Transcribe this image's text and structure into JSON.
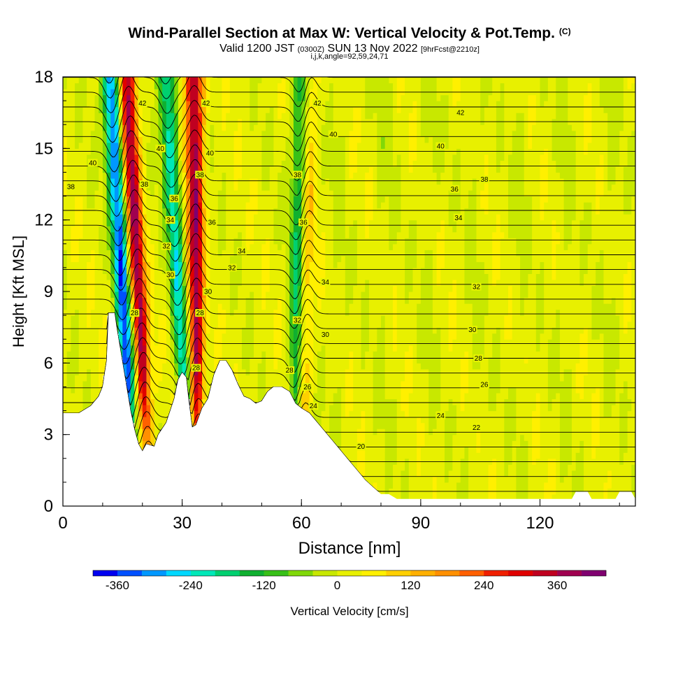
{
  "header": {
    "title": "Wind-Parallel Section at Max W: Vertical Velocity & Pot.Temp.",
    "copyright": "(C)",
    "valid_prefix": "Valid 1200 JST",
    "valid_utc": "(0300Z)",
    "valid_date": "SUN 13 Nov 2022",
    "forecast_tag": "[9hrFcst@2210z]",
    "grid_info": "i,j,k,angle=92,59,24,71"
  },
  "chart_data": {
    "type": "heatmap",
    "xlabel": "Distance [nm]",
    "ylabel": "Height [Kft MSL]",
    "xlim": [
      0,
      144
    ],
    "ylim": [
      0,
      18
    ],
    "x_ticks": [
      0,
      30,
      60,
      90,
      120
    ],
    "y_ticks": [
      0,
      3,
      6,
      9,
      12,
      15,
      18
    ],
    "grid": false,
    "field_filled": "Vertical Velocity [cm/s]",
    "field_contours": "Potential Temperature",
    "colorbar": {
      "label": "Vertical Velocity [cm/s]",
      "min": -400,
      "max": 440,
      "tick_values": [
        -360,
        -240,
        -120,
        0,
        120,
        240,
        360
      ],
      "tick_labels": [
        "-360",
        "-240",
        "-120",
        "0",
        "120",
        "240",
        "360"
      ],
      "colors": [
        "#0000f0",
        "#0050ff",
        "#0098ff",
        "#00d8ff",
        "#00e8b8",
        "#00d070",
        "#10b030",
        "#38c018",
        "#80d808",
        "#c8e800",
        "#e8f000",
        "#fff000",
        "#ffd000",
        "#ffb000",
        "#ff9000",
        "#ff6000",
        "#f02000",
        "#e00000",
        "#c00020",
        "#a00050",
        "#800070"
      ]
    },
    "vertical_velocity_features": [
      {
        "name": "downdraft",
        "base_x": 18,
        "top_x": 12,
        "min_cm_s": -360
      },
      {
        "name": "updraft",
        "base_x": 22,
        "top_x": 16,
        "max_cm_s": 360
      },
      {
        "name": "downdraft",
        "base_x": 32,
        "top_x": 26,
        "min_cm_s": -240
      },
      {
        "name": "updraft",
        "base_x": 34,
        "top_x": 33,
        "max_cm_s": 360
      },
      {
        "name": "downdraft",
        "base_x": 58,
        "top_x": 60,
        "min_cm_s": -200
      },
      {
        "name": "updraft",
        "base_x": 60,
        "top_x": 62,
        "max_cm_s": 120
      }
    ],
    "isentrope_labels": [
      {
        "text": "42",
        "x": 20,
        "y": 16.9
      },
      {
        "text": "42",
        "x": 36,
        "y": 16.9
      },
      {
        "text": "42",
        "x": 64,
        "y": 16.9
      },
      {
        "text": "42",
        "x": 100,
        "y": 16.5
      },
      {
        "text": "40",
        "x": 7.5,
        "y": 14.4
      },
      {
        "text": "40",
        "x": 24.5,
        "y": 15.0
      },
      {
        "text": "40",
        "x": 37,
        "y": 14.8
      },
      {
        "text": "40",
        "x": 68,
        "y": 15.6
      },
      {
        "text": "40",
        "x": 95,
        "y": 15.1
      },
      {
        "text": "38",
        "x": 2,
        "y": 13.4
      },
      {
        "text": "38",
        "x": 20.5,
        "y": 13.5
      },
      {
        "text": "38",
        "x": 34.5,
        "y": 13.9
      },
      {
        "text": "38",
        "x": 59,
        "y": 13.9
      },
      {
        "text": "38",
        "x": 106,
        "y": 13.7
      },
      {
        "text": "36",
        "x": 28,
        "y": 12.9
      },
      {
        "text": "36",
        "x": 37.5,
        "y": 11.9
      },
      {
        "text": "36",
        "x": 60.5,
        "y": 11.9
      },
      {
        "text": "36",
        "x": 98.5,
        "y": 13.3
      },
      {
        "text": "34",
        "x": 27,
        "y": 12.0
      },
      {
        "text": "34",
        "x": 45,
        "y": 10.7
      },
      {
        "text": "34",
        "x": 66,
        "y": 9.4
      },
      {
        "text": "34",
        "x": 99.5,
        "y": 12.1
      },
      {
        "text": "32",
        "x": 26,
        "y": 10.9
      },
      {
        "text": "32",
        "x": 42.5,
        "y": 10.0
      },
      {
        "text": "32",
        "x": 59,
        "y": 7.8
      },
      {
        "text": "32",
        "x": 104,
        "y": 9.2
      },
      {
        "text": "30",
        "x": 27,
        "y": 9.7
      },
      {
        "text": "30",
        "x": 36.5,
        "y": 9.0
      },
      {
        "text": "30",
        "x": 66,
        "y": 7.2
      },
      {
        "text": "30",
        "x": 103,
        "y": 7.4
      },
      {
        "text": "28",
        "x": 18,
        "y": 8.1
      },
      {
        "text": "28",
        "x": 34.5,
        "y": 8.1
      },
      {
        "text": "28",
        "x": 33.5,
        "y": 5.8
      },
      {
        "text": "28",
        "x": 57,
        "y": 5.7
      },
      {
        "text": "28",
        "x": 104.5,
        "y": 6.2
      },
      {
        "text": "26",
        "x": 61.5,
        "y": 5.0
      },
      {
        "text": "26",
        "x": 106,
        "y": 5.1
      },
      {
        "text": "24",
        "x": 63,
        "y": 4.2
      },
      {
        "text": "24",
        "x": 95,
        "y": 3.8
      },
      {
        "text": "22",
        "x": 104,
        "y": 3.3
      },
      {
        "text": "20",
        "x": 75,
        "y": 2.5
      }
    ],
    "terrain_height_kft": [
      [
        0,
        3.9
      ],
      [
        4,
        3.9
      ],
      [
        7,
        4.2
      ],
      [
        9,
        4.6
      ],
      [
        10,
        5.0
      ],
      [
        11,
        6.1
      ],
      [
        11.5,
        8.1
      ],
      [
        13,
        8.1
      ],
      [
        13.5,
        7.5
      ],
      [
        14.5,
        6.5
      ],
      [
        16,
        5.0
      ],
      [
        17,
        4.0
      ],
      [
        18,
        3.2
      ],
      [
        19,
        2.6
      ],
      [
        20,
        2.3
      ],
      [
        21,
        2.6
      ],
      [
        23,
        2.5
      ],
      [
        24,
        3.0
      ],
      [
        26,
        3.5
      ],
      [
        28,
        4.5
      ],
      [
        29,
        5.3
      ],
      [
        30,
        5.6
      ],
      [
        31,
        5.4
      ],
      [
        31.5,
        4.6
      ],
      [
        32.5,
        3.3
      ],
      [
        33.5,
        3.4
      ],
      [
        35,
        4.1
      ],
      [
        36.5,
        4.5
      ],
      [
        38,
        5.5
      ],
      [
        39.5,
        6.1
      ],
      [
        41,
        6.1
      ],
      [
        42.5,
        5.7
      ],
      [
        44,
        5.1
      ],
      [
        45.5,
        4.6
      ],
      [
        47,
        4.5
      ],
      [
        48.5,
        4.3
      ],
      [
        50,
        4.4
      ],
      [
        51.5,
        4.8
      ],
      [
        53,
        5.0
      ],
      [
        55,
        5.0
      ],
      [
        57,
        4.8
      ],
      [
        58.5,
        4.3
      ],
      [
        60,
        4.1
      ],
      [
        62,
        3.9
      ],
      [
        64,
        3.5
      ],
      [
        66,
        3.1
      ],
      [
        68,
        2.7
      ],
      [
        70,
        2.3
      ],
      [
        72,
        1.9
      ],
      [
        74,
        1.5
      ],
      [
        76,
        1.1
      ],
      [
        78,
        0.8
      ],
      [
        80,
        0.5
      ],
      [
        82,
        0.5
      ],
      [
        84,
        0.3
      ],
      [
        86,
        0.3
      ],
      [
        100,
        0.3
      ],
      [
        115,
        0.3
      ],
      [
        128,
        0.3
      ],
      [
        129,
        0.6
      ],
      [
        132,
        0.6
      ],
      [
        133,
        0.3
      ],
      [
        139,
        0.3
      ],
      [
        140,
        0.6
      ],
      [
        143,
        0.6
      ],
      [
        144,
        0.3
      ]
    ]
  }
}
